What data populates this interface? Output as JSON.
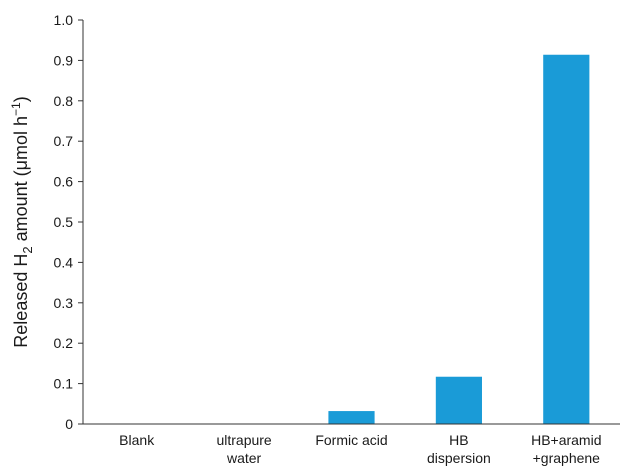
{
  "chart_data": {
    "type": "bar",
    "title": "",
    "xlabel": "",
    "ylabel": {
      "prefix": "Released H",
      "subscript": "2",
      "suffix": " amount (μmol h",
      "superscript": "−1",
      "close": ")"
    },
    "categories": [
      [
        "Blank"
      ],
      [
        "ultrapure",
        "water"
      ],
      [
        "Formic acid"
      ],
      [
        "HB",
        "dispersion"
      ],
      [
        "HB+aramid",
        "+graphene"
      ]
    ],
    "values": [
      0.0,
      0.0,
      0.032,
      0.117,
      0.914
    ],
    "ylim": [
      0,
      1.0
    ],
    "yticks": [
      "0",
      "0.1",
      "0.2",
      "0.3",
      "0.4",
      "0.5",
      "0.6",
      "0.7",
      "0.8",
      "0.9",
      "1.0"
    ],
    "bar_color": "#1a9bd7",
    "grid": false,
    "legend": "none"
  }
}
